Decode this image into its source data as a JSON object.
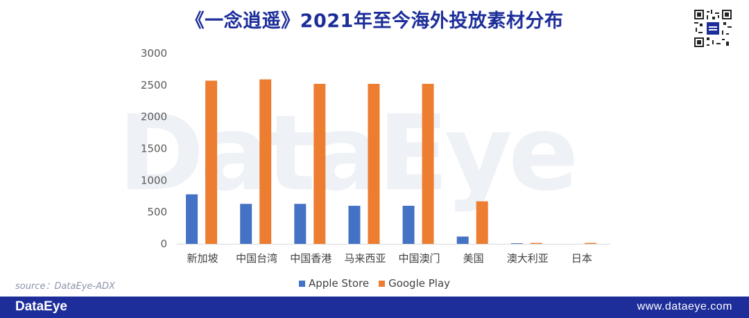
{
  "header": {
    "title": "《一念逍遥》2021年至今海外投放素材分布"
  },
  "watermark": "DataEye",
  "source": "source：DataEye-ADX",
  "footer": {
    "brand": "DataEye",
    "url": "www.dataeye.com",
    "bar_color": "#1d2e9a"
  },
  "colors": {
    "apple": "#4472c4",
    "google": "#ed7d31",
    "title": "#1d2e9a"
  },
  "chart_data": {
    "type": "bar",
    "categories": [
      "新加坡",
      "中国台湾",
      "中国香港",
      "马来西亚",
      "中国澳门",
      "美国",
      "澳大利亚",
      "日本"
    ],
    "series": [
      {
        "name": "Apple Store",
        "values": [
          780,
          630,
          630,
          600,
          600,
          115,
          10,
          0
        ]
      },
      {
        "name": "Google Play",
        "values": [
          2570,
          2590,
          2520,
          2520,
          2520,
          670,
          15,
          15
        ]
      }
    ],
    "ylim": [
      0,
      3000
    ],
    "yticks": [
      0,
      500,
      1000,
      1500,
      2000,
      2500,
      3000
    ],
    "grid": false,
    "legend_position": "bottom"
  }
}
